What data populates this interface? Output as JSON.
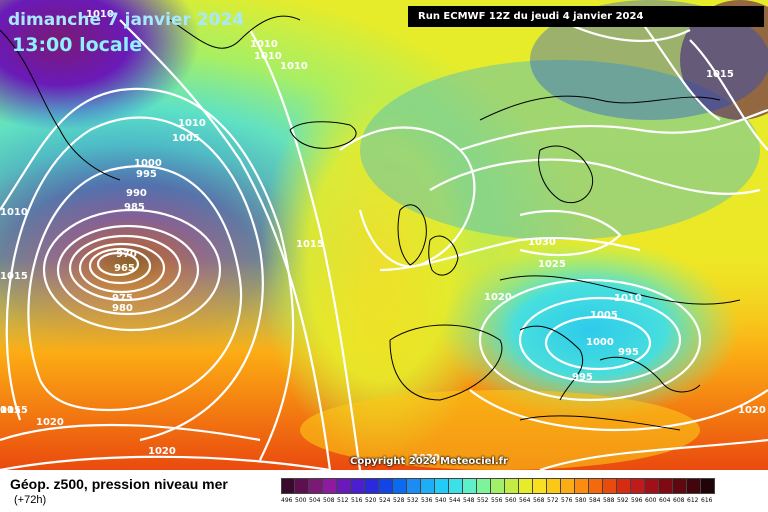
{
  "header": {
    "date_line": "dimanche 7 janvier 2024",
    "time_line": "13:00 locale",
    "run_info": "Run ECMWF 12Z du jeudi 4 janvier 2024"
  },
  "copyright": "Copyright 2024 Meteociel.fr",
  "footer": {
    "variable": "Géop. z500, pression niveau mer",
    "lead_time": "(+72h)"
  },
  "colorscale": {
    "labels": [
      "496",
      "500",
      "504",
      "508",
      "512",
      "516",
      "520",
      "524",
      "528",
      "532",
      "536",
      "540",
      "544",
      "548",
      "552",
      "556",
      "560",
      "564",
      "568",
      "572",
      "576",
      "580",
      "584",
      "588",
      "592",
      "596",
      "600",
      "604",
      "608",
      "612",
      "616"
    ],
    "colors": [
      "#3a0a2e",
      "#5c1050",
      "#7a1a74",
      "#8e1aa0",
      "#6a1ab8",
      "#4b1fd0",
      "#2a2adc",
      "#1244e6",
      "#0a6af0",
      "#1a8cf4",
      "#1eaef6",
      "#22ccf6",
      "#3ee0e8",
      "#5ef0c8",
      "#7ef49a",
      "#a0f06a",
      "#c4ec46",
      "#e6ec2a",
      "#f8e020",
      "#fcc818",
      "#fcac14",
      "#fa8c10",
      "#f4680e",
      "#ea4a0e",
      "#d82c12",
      "#c01a1a",
      "#a01018",
      "#800a14",
      "#600810",
      "#40060c",
      "#200408"
    ]
  },
  "isobar_labels": [
    {
      "text": "1010"
    },
    {
      "text": "1010"
    },
    {
      "text": "1010"
    },
    {
      "text": "1010"
    },
    {
      "text": "1010"
    },
    {
      "text": "1005"
    },
    {
      "text": "1000"
    },
    {
      "text": "995"
    },
    {
      "text": "990"
    },
    {
      "text": "985"
    },
    {
      "text": "970"
    },
    {
      "text": "965"
    },
    {
      "text": "975"
    },
    {
      "text": "980"
    },
    {
      "text": "1010"
    },
    {
      "text": "1015"
    },
    {
      "text": "1015"
    },
    {
      "text": "1015"
    },
    {
      "text": "1020"
    },
    {
      "text": "1020"
    },
    {
      "text": "1020"
    },
    {
      "text": "1030"
    },
    {
      "text": "1025"
    },
    {
      "text": "1020"
    },
    {
      "text": "1010"
    },
    {
      "text": "1005"
    },
    {
      "text": "1000"
    },
    {
      "text": "995"
    },
    {
      "text": "995"
    },
    {
      "text": "1015"
    },
    {
      "text": "1020"
    },
    {
      "text": "015"
    }
  ]
}
